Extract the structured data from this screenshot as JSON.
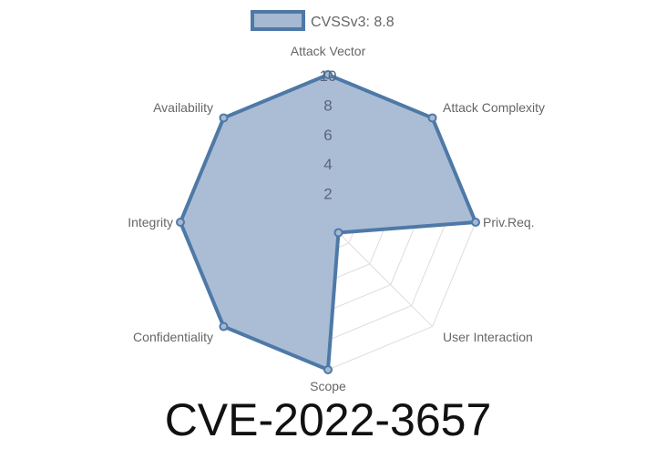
{
  "chart_data": {
    "type": "radar",
    "title": "CVE-2022-3657",
    "axes": [
      "Attack Vector",
      "Attack Complexity",
      "Priv.Req.",
      "User Interaction",
      "Scope",
      "Confidentiality",
      "Integrity",
      "Availability"
    ],
    "series": [
      {
        "name": "CVSSv3: 8.8",
        "values": [
          10,
          10,
          10,
          1,
          10,
          10,
          10,
          10
        ]
      }
    ],
    "rlim": [
      0,
      10
    ],
    "ticks": [
      "2",
      "4",
      "6",
      "8",
      "10"
    ],
    "legend_position": "top",
    "colors": {
      "line": "#4e79a7",
      "fill": "#a5b9d3",
      "grid": "#dddddd"
    }
  }
}
